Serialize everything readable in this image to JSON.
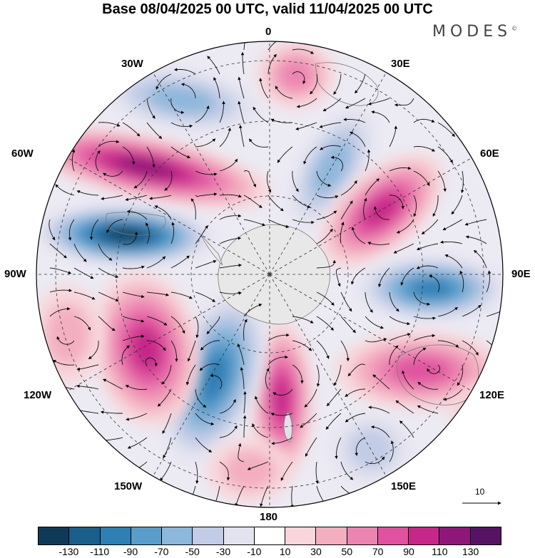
{
  "title": "Base 08/04/2025 00 UTC, valid 11/04/2025 00 UTC",
  "brand": "MODES",
  "brand_mark": "©",
  "longitude_labels": {
    "lon_0": "0",
    "lon_30e": "30E",
    "lon_60e": "60E",
    "lon_90e": "90E",
    "lon_120e": "120E",
    "lon_150e": "150E",
    "lon_180": "180",
    "lon_150w": "150W",
    "lon_120w": "120W",
    "lon_90w": "90W",
    "lon_60w": "60W",
    "lon_30w": "30W"
  },
  "vector_reference": "10",
  "colorbar": {
    "colors": [
      "#0f3a57",
      "#1a5f8c",
      "#2f7fb5",
      "#5a9dcb",
      "#8db7db",
      "#c2cce6",
      "#e3e3ef",
      "#ffffff",
      "#f8d6da",
      "#f3aec0",
      "#ec84b2",
      "#e0529f",
      "#c62889",
      "#8f1779",
      "#561364"
    ],
    "labels": [
      "-130",
      "-110",
      "-90",
      "-70",
      "-50",
      "-30",
      "-10",
      "10",
      "30",
      "50",
      "70",
      "90",
      "110",
      "130"
    ]
  },
  "map_colors": {
    "ocean_background": "#eceaf3",
    "antarctica": "#e8e8e8",
    "coast": "#7a7a7a"
  }
}
